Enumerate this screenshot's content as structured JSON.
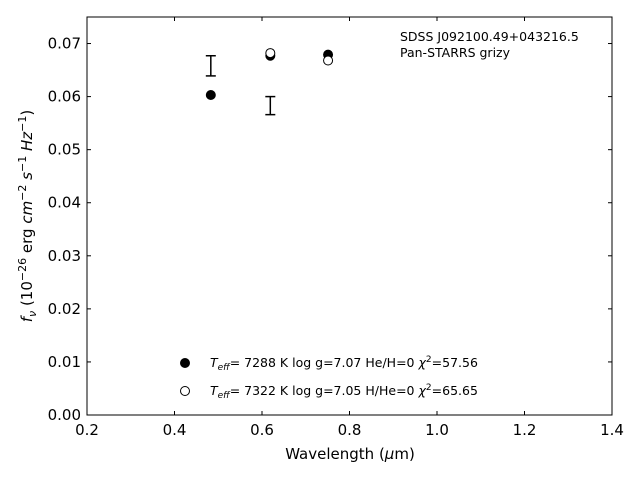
{
  "chart_data": {
    "type": "scatter",
    "title": "",
    "xlabel": "Wavelength (μm)",
    "xlabel_parts": {
      "pre": "Wavelength (",
      "italic": "μ",
      "post": "m)"
    },
    "ylabel": "f_ν (10^-26 erg cm^-2 s^-1 Hz^-1)",
    "xlim": [
      0.2,
      1.4
    ],
    "ylim": [
      0.0,
      0.075
    ],
    "xticks": [
      0.2,
      0.4,
      0.6,
      0.8,
      1.0,
      1.2,
      1.4
    ],
    "xtick_labels": [
      "0.2",
      "0.4",
      "0.6",
      "0.8",
      "1.0",
      "1.2",
      "1.4"
    ],
    "yticks": [
      0.0,
      0.01,
      0.02,
      0.03,
      0.04,
      0.05,
      0.06,
      0.07
    ],
    "ytick_labels": [
      "0.00",
      "0.01",
      "0.02",
      "0.03",
      "0.04",
      "0.05",
      "0.06",
      "0.07"
    ],
    "grid": false,
    "legend_position": "bottom-center",
    "annotation": [
      "SDSS J092100.49+043216.5",
      "Pan-STARRS grizy"
    ],
    "observed": {
      "x": [
        0.483,
        0.619
      ],
      "y": [
        0.0658,
        0.0583
      ],
      "yerr": [
        0.0019,
        0.0017
      ]
    },
    "series": [
      {
        "name": "T_eff= 7288 K  log g=7.07  He/H=0  χ²=57.56",
        "marker": "filled-circle",
        "x": [
          0.483,
          0.619,
          0.751
        ],
        "y": [
          0.0603,
          0.0677,
          0.0679
        ],
        "legend": {
          "teff": "7288 K",
          "logg": "log g=7.07",
          "comp": "He/H=0",
          "chi": "=57.56"
        }
      },
      {
        "name": "T_eff= 7322 K  log g=7.05  H/He=0  χ²=65.65",
        "marker": "open-circle",
        "x": [
          0.619,
          0.751
        ],
        "y": [
          0.0682,
          0.0668
        ],
        "legend": {
          "teff": "7322 K",
          "logg": "log g=7.05",
          "comp": "H/He=0",
          "chi": "=65.65"
        }
      }
    ]
  }
}
